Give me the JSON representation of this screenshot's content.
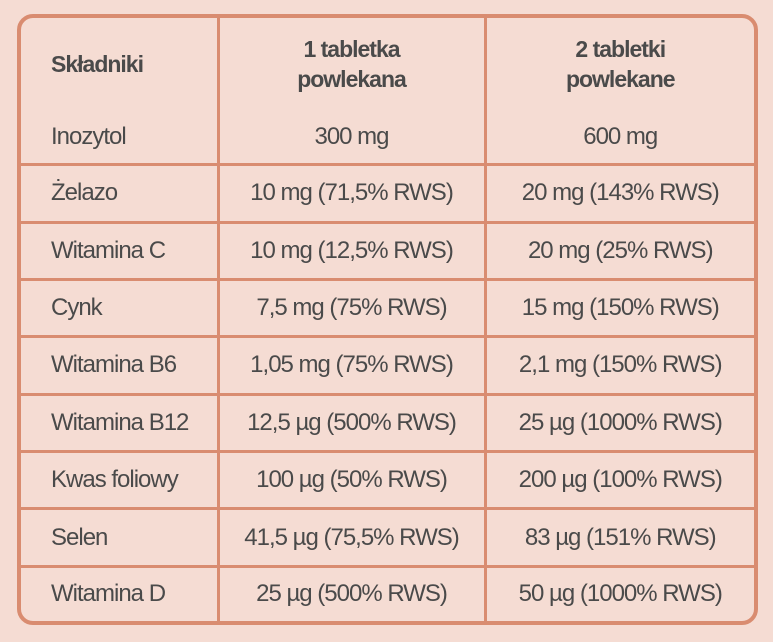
{
  "table": {
    "header": [
      "Składniki",
      "1 tabletka\npowlekana",
      "2 tabletki\npowlekane"
    ],
    "rows": [
      [
        "Inozytol",
        "300 mg",
        "600 mg"
      ],
      [
        "Żelazo",
        "10 mg (71,5% RWS)",
        "20 mg (143% RWS)"
      ],
      [
        "Witamina C",
        "10 mg (12,5% RWS)",
        "20 mg (25% RWS)"
      ],
      [
        "Cynk",
        "7,5 mg (75% RWS)",
        "15 mg (150% RWS)"
      ],
      [
        "Witamina B6",
        "1,05 mg (75% RWS)",
        "2,1 mg (150% RWS)"
      ],
      [
        "Witamina B12",
        "12,5 µg (500% RWS)",
        "25 µg (1000% RWS)"
      ],
      [
        "Kwas foliowy",
        "100 µg (50% RWS)",
        "200 µg (100% RWS)"
      ],
      [
        "Selen",
        "41,5 µg (75,5% RWS)",
        "83 µg (151% RWS)"
      ],
      [
        "Witamina D",
        "25 µg (500% RWS)",
        "50 µg (1000% RWS)"
      ]
    ]
  }
}
